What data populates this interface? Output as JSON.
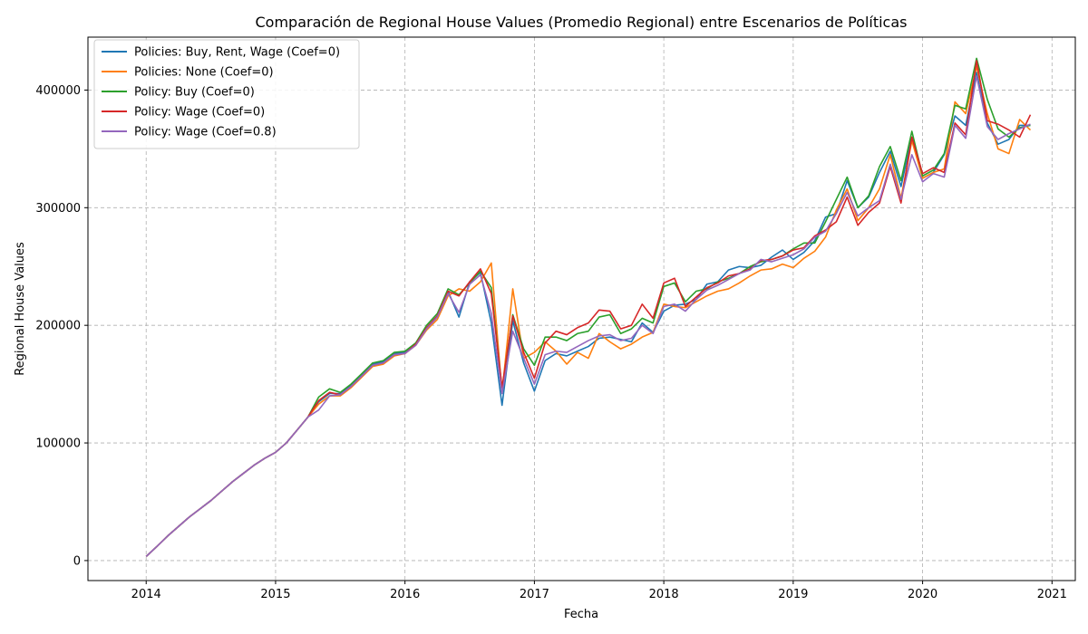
{
  "chart_data": {
    "type": "line",
    "title": "Comparación de Regional House Values (Promedio Regional) entre Escenarios de Políticas",
    "xlabel": "Fecha",
    "ylabel": "Regional House Values",
    "xlim": [
      2013.55,
      2021.18
    ],
    "ylim": [
      -17000,
      445000
    ],
    "x_ticks": [
      "2014",
      "2015",
      "2016",
      "2017",
      "2018",
      "2019",
      "2020",
      "2021"
    ],
    "y_ticks": [
      0,
      100000,
      200000,
      300000,
      400000
    ],
    "grid": true,
    "legend_position": "top-left",
    "x": [
      2014.0,
      2014.083,
      2014.167,
      2014.25,
      2014.333,
      2014.417,
      2014.5,
      2014.583,
      2014.667,
      2014.75,
      2014.833,
      2014.917,
      2015.0,
      2015.083,
      2015.167,
      2015.25,
      2015.333,
      2015.417,
      2015.5,
      2015.583,
      2015.667,
      2015.75,
      2015.833,
      2015.917,
      2016.0,
      2016.083,
      2016.167,
      2016.25,
      2016.333,
      2016.417,
      2016.5,
      2016.583,
      2016.667,
      2016.75,
      2016.833,
      2016.917,
      2017.0,
      2017.083,
      2017.167,
      2017.25,
      2017.333,
      2017.417,
      2017.5,
      2017.583,
      2017.667,
      2017.75,
      2017.833,
      2017.917,
      2018.0,
      2018.083,
      2018.167,
      2018.25,
      2018.333,
      2018.417,
      2018.5,
      2018.583,
      2018.667,
      2018.75,
      2018.833,
      2018.917,
      2019.0,
      2019.083,
      2019.167,
      2019.25,
      2019.333,
      2019.417,
      2019.5,
      2019.583,
      2019.667,
      2019.75,
      2019.833,
      2019.917,
      2020.0,
      2020.083,
      2020.167,
      2020.25,
      2020.333,
      2020.417,
      2020.5,
      2020.583,
      2020.667,
      2020.75,
      2020.833
    ],
    "series": [
      {
        "name": "Policies: Buy, Rent, Wage (Coef=0)",
        "color": "#1f77b4",
        "values": [
          3500,
          12000,
          21000,
          29000,
          37000,
          44000,
          51000,
          59000,
          67000,
          74000,
          81000,
          87000,
          92000,
          100000,
          111000,
          122000,
          135000,
          142000,
          142000,
          149000,
          158000,
          167000,
          169000,
          176000,
          177000,
          184000,
          198000,
          208000,
          229000,
          207000,
          237000,
          245000,
          202000,
          132000,
          204000,
          168000,
          144000,
          170000,
          176000,
          174000,
          178000,
          182000,
          189000,
          190000,
          188000,
          186000,
          202000,
          194000,
          212000,
          217000,
          218000,
          222000,
          235000,
          237000,
          247000,
          250000,
          249000,
          251000,
          258000,
          264000,
          256000,
          262000,
          272000,
          292000,
          295000,
          323000,
          300000,
          309000,
          330000,
          348000,
          318000,
          360000,
          325000,
          330000,
          345000,
          378000,
          370000,
          415000,
          372000,
          354000,
          358000,
          370000,
          370000
        ]
      },
      {
        "name": "Policies: None (Coef=0)",
        "color": "#ff7f0e",
        "values": [
          3500,
          12000,
          21000,
          29000,
          37000,
          44000,
          51000,
          59000,
          67000,
          74000,
          81000,
          87000,
          92000,
          100000,
          111000,
          122000,
          133000,
          140000,
          140000,
          147000,
          156000,
          165000,
          167000,
          174000,
          176000,
          183000,
          196000,
          205000,
          225000,
          231000,
          229000,
          237000,
          253000,
          143000,
          231000,
          172000,
          177000,
          186000,
          178000,
          167000,
          177000,
          172000,
          193000,
          186000,
          180000,
          184000,
          190000,
          194000,
          218000,
          216000,
          215000,
          220000,
          225000,
          229000,
          231000,
          236000,
          242000,
          247000,
          248000,
          252000,
          249000,
          257000,
          263000,
          275000,
          298000,
          316000,
          289000,
          300000,
          316000,
          345000,
          308000,
          357000,
          325000,
          330000,
          333000,
          390000,
          380000,
          420000,
          380000,
          350000,
          346000,
          375000,
          366000
        ]
      },
      {
        "name": "Policy: Buy (Coef=0)",
        "color": "#2ca02c",
        "values": [
          3500,
          12000,
          21000,
          29000,
          37000,
          44000,
          51000,
          59000,
          67000,
          74000,
          81000,
          87000,
          92000,
          100000,
          111000,
          122000,
          139000,
          146000,
          143000,
          150000,
          159000,
          168000,
          170000,
          177000,
          178000,
          185000,
          200000,
          210000,
          231000,
          226000,
          236000,
          246000,
          232000,
          145000,
          209000,
          180000,
          166000,
          190000,
          190000,
          187000,
          193000,
          195000,
          207000,
          209000,
          193000,
          197000,
          206000,
          202000,
          233000,
          236000,
          220000,
          229000,
          231000,
          237000,
          240000,
          244000,
          250000,
          254000,
          256000,
          259000,
          265000,
          270000,
          270000,
          288000,
          307000,
          326000,
          300000,
          310000,
          335000,
          352000,
          323000,
          365000,
          327000,
          332000,
          346000,
          387000,
          384000,
          427000,
          392000,
          367000,
          360000,
          368000,
          370000
        ]
      },
      {
        "name": "Policy: Wage (Coef=0)",
        "color": "#d62728",
        "values": [
          3500,
          12000,
          21000,
          29000,
          37000,
          44000,
          51000,
          59000,
          67000,
          74000,
          81000,
          87000,
          92000,
          100000,
          111000,
          122000,
          136000,
          143000,
          141000,
          148000,
          157000,
          166000,
          168000,
          175000,
          176000,
          184000,
          198000,
          208000,
          229000,
          225000,
          237000,
          248000,
          227000,
          147000,
          208000,
          177000,
          155000,
          185000,
          195000,
          192000,
          198000,
          202000,
          213000,
          212000,
          197000,
          200000,
          218000,
          206000,
          236000,
          240000,
          216000,
          224000,
          232000,
          236000,
          242000,
          244000,
          248000,
          255000,
          256000,
          259000,
          264000,
          266000,
          276000,
          281000,
          288000,
          309000,
          285000,
          296000,
          304000,
          335000,
          304000,
          360000,
          329000,
          334000,
          330000,
          372000,
          362000,
          425000,
          374000,
          371000,
          366000,
          360000,
          379000
        ]
      },
      {
        "name": "Policy: Wage (Coef=0.8)",
        "color": "#9467bd",
        "values": [
          3500,
          12000,
          21000,
          29000,
          37000,
          44000,
          51000,
          59000,
          67000,
          74000,
          81000,
          87000,
          92000,
          100000,
          111000,
          122000,
          128000,
          140000,
          141000,
          148000,
          157000,
          166000,
          168000,
          175000,
          176000,
          183000,
          197000,
          207000,
          227000,
          211000,
          235000,
          243000,
          210000,
          142000,
          195000,
          172000,
          150000,
          175000,
          178000,
          177000,
          182000,
          187000,
          191000,
          192000,
          187000,
          189000,
          200000,
          193000,
          216000,
          218000,
          212000,
          222000,
          230000,
          234000,
          239000,
          244000,
          247000,
          256000,
          254000,
          257000,
          260000,
          265000,
          275000,
          280000,
          295000,
          313000,
          293000,
          300000,
          306000,
          337000,
          307000,
          345000,
          322000,
          329000,
          326000,
          370000,
          359000,
          412000,
          369000,
          358000,
          363000,
          367000,
          371000
        ]
      }
    ]
  }
}
